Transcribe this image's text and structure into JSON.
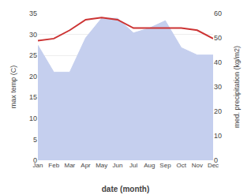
{
  "chart_data": {
    "type": "line",
    "categories": [
      "Jan",
      "Feb",
      "Mar",
      "Apr",
      "May",
      "Jun",
      "Jul",
      "Aug",
      "Sep",
      "Oct",
      "Nov",
      "Dec"
    ],
    "xlabel": "date (month)",
    "ylabel": "max temp (C)",
    "y2label": "med. precipitation (kg/m2)",
    "series": [
      {
        "type": "line",
        "color": "#cc3333",
        "values": [
          28.5,
          29.0,
          31.0,
          33.5,
          34.0,
          33.5,
          31.5,
          31.5,
          31.5,
          31.5,
          31.0,
          29.0
        ]
      },
      {
        "type": "area",
        "axis": "y2",
        "color": "#c5cfee",
        "values": [
          47.0,
          36.0,
          36.0,
          50.0,
          58.0,
          58.0,
          52.0,
          54.0,
          57.0,
          46.0,
          43.0,
          43.0
        ]
      }
    ],
    "ylim": [
      0,
      35
    ],
    "yticks": [
      0,
      5,
      10,
      15,
      20,
      25,
      30,
      35
    ],
    "y2lim": [
      0,
      60
    ],
    "y2ticks": [
      0,
      10,
      20,
      30,
      40,
      50,
      60
    ],
    "grid": true
  }
}
